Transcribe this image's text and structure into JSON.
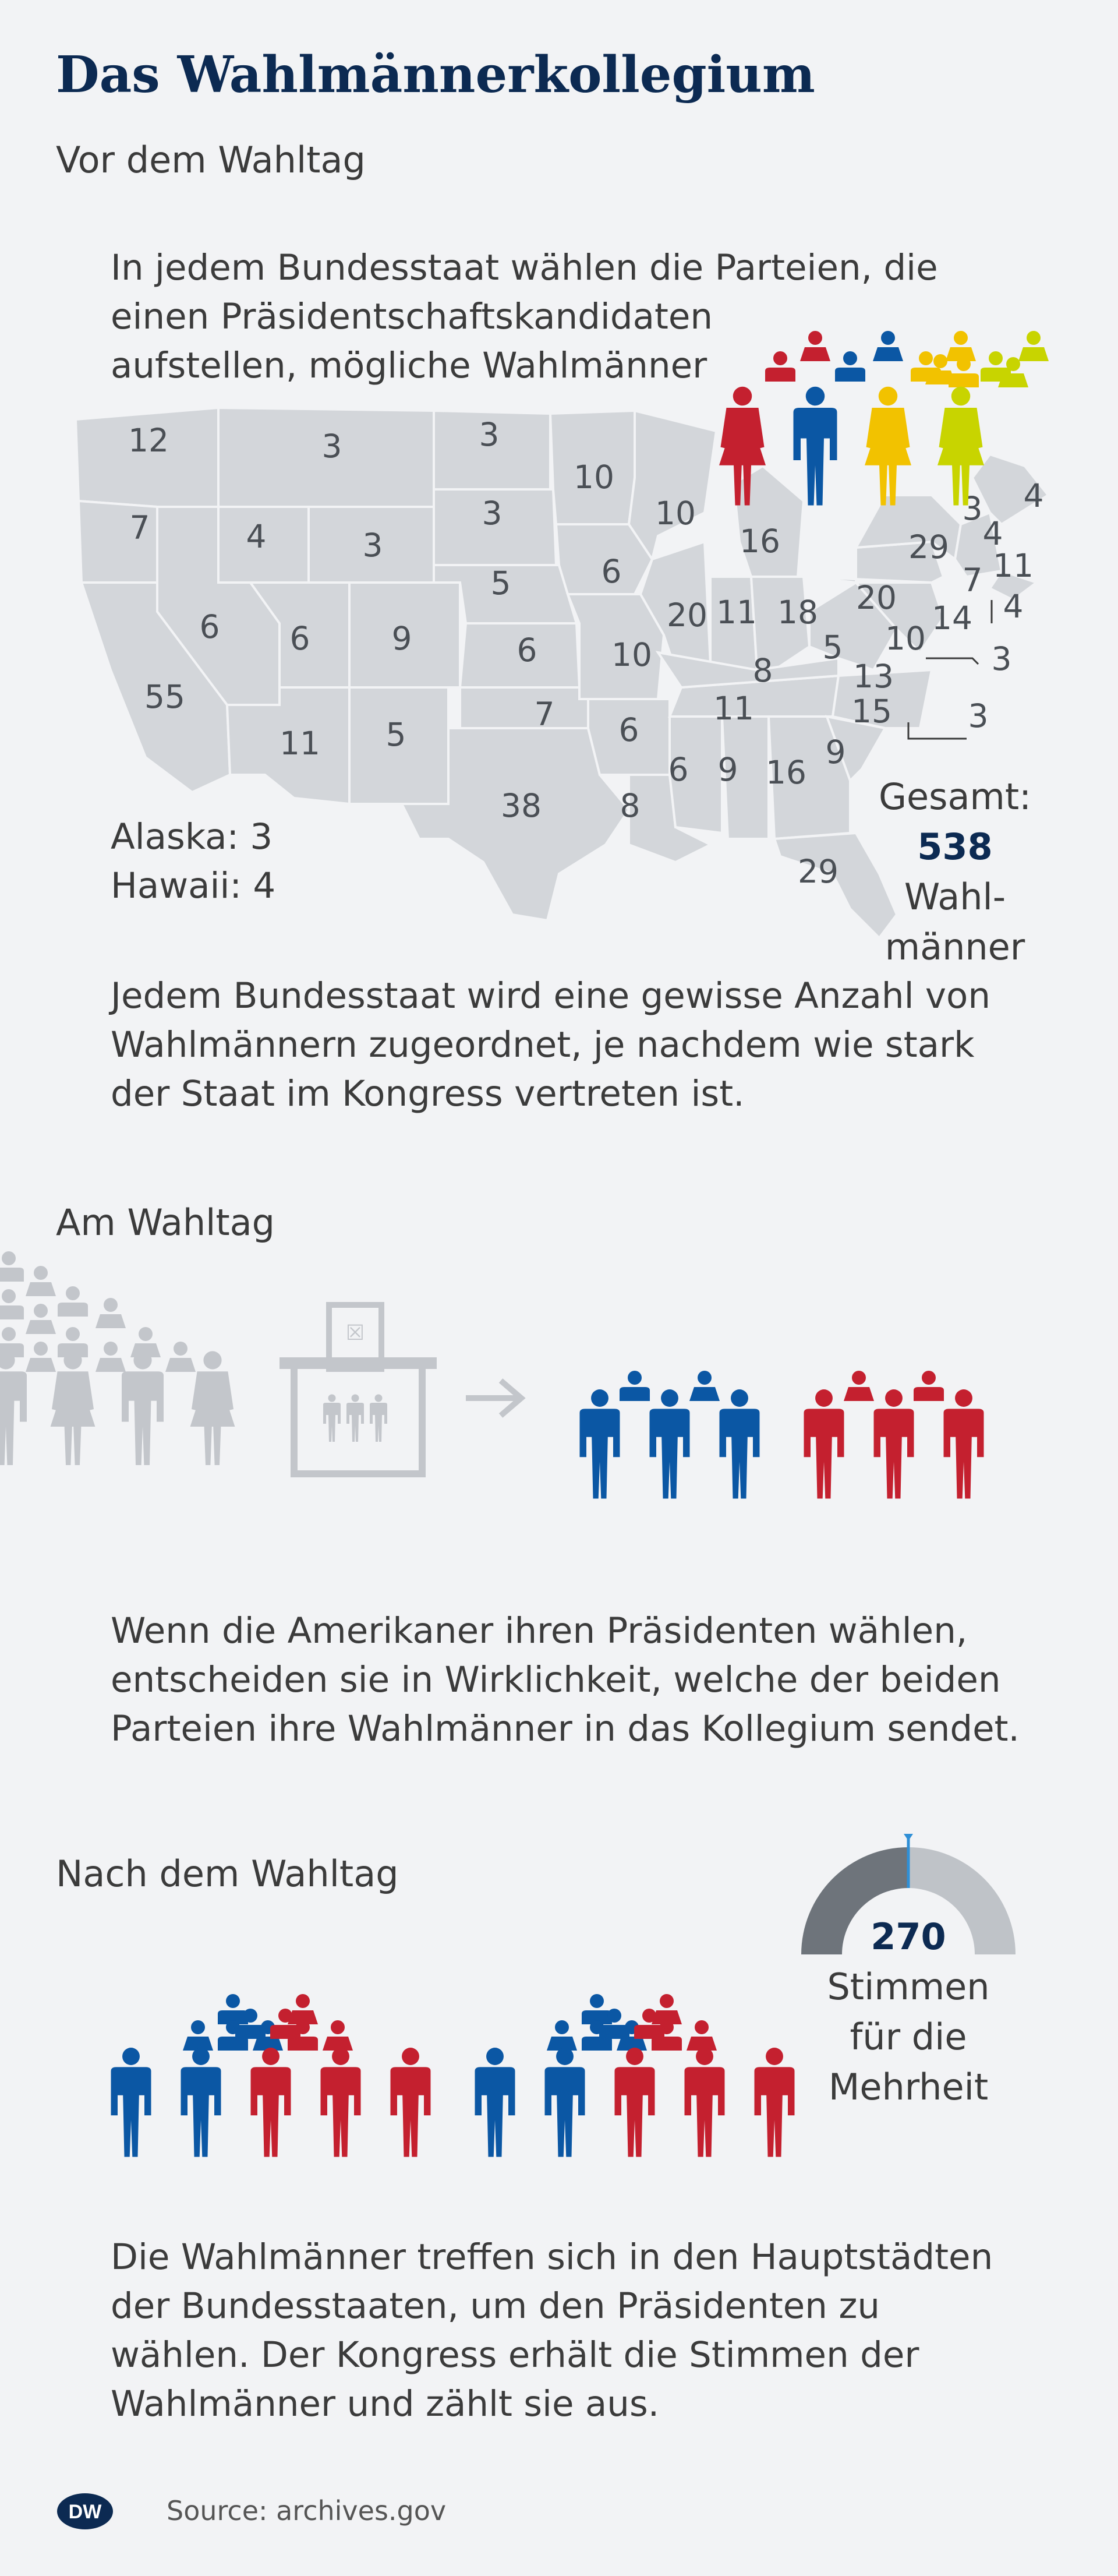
{
  "header": {
    "title": "Das Wahlmännerkollegium"
  },
  "section1": {
    "heading": "Vor dem Wahltag",
    "intro": [
      "In jedem Bundesstaat wählen die Parteien, die",
      "einen Präsidentschaftskandidaten",
      "aufstellen, mögliche Wahlmänner"
    ],
    "map_numbers": [
      "12",
      "3",
      "3",
      "7",
      "4",
      "3",
      "3",
      "10",
      "10",
      "5",
      "6",
      "16",
      "3",
      "4",
      "29",
      "4",
      "11",
      "20",
      "11",
      "18",
      "20",
      "7",
      "4",
      "14",
      "6",
      "6",
      "9",
      "6",
      "10",
      "5",
      "10",
      "3",
      "8",
      "13",
      "55",
      "11",
      "5",
      "7",
      "6",
      "11",
      "15",
      "3",
      "6",
      "9",
      "16",
      "9",
      "38",
      "8",
      "29"
    ],
    "alaska": "Alaska: 3",
    "hawaii": "Hawaii: 4",
    "total_label": "Gesamt:",
    "total_value": "538",
    "total_unit_line1": "Wahl-",
    "total_unit_line2": "männer",
    "outro": [
      "Jedem Bundesstaat wird eine gewisse Anzahl von",
      "Wahlmännern zugeordnet, je nachdem wie stark",
      "der Staat im Kongress vertreten ist."
    ]
  },
  "section2": {
    "heading": "Am Wahltag",
    "text": [
      "Wenn die Amerikaner ihren Präsidenten wählen,",
      "entscheiden sie in Wirklichkeit, welche der beiden",
      "Parteien ihre Wahlmänner in das Kollegium sendet."
    ]
  },
  "section3": {
    "heading": "Nach dem Wahltag",
    "majority_value": "270",
    "majority_line1": "Stimmen",
    "majority_line2": "für die",
    "majority_line3": "Mehrheit",
    "text": [
      "Die Wahlmänner treffen sich in den Hauptstädten",
      "der Bundesstaaten, um den Präsidenten zu",
      "wählen. Der Kongress erhält die Stimmen der",
      "Wahlmänner und zählt sie aus."
    ]
  },
  "footer": {
    "logo": "DW",
    "source": "Source: archives.gov"
  },
  "colors": {
    "title": "#0c2a52",
    "text": "#3b3b3b",
    "map": "#d3d6da",
    "gray_people": "#c3c6cb",
    "red": "#c4202f",
    "blue": "#0b57a4",
    "yellow": "#f2c200",
    "lime": "#c8d400",
    "gauge_dark": "#6e747b",
    "gauge_light": "#bfc3c8",
    "gauge_marker": "#2f8fd6"
  }
}
